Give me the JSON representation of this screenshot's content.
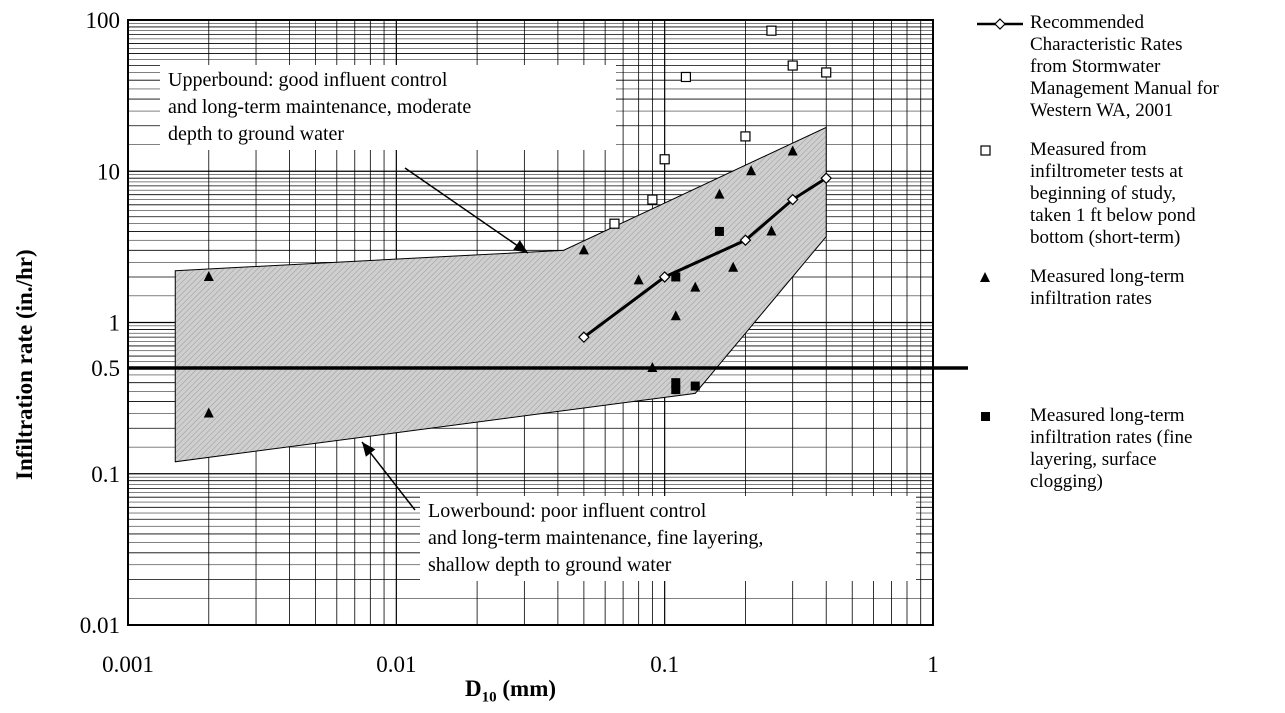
{
  "chart_data": {
    "type": "scatter",
    "xlabel": "D10 (mm)",
    "xlabel_main": "D",
    "xlabel_sub": "10",
    "xlabel_unit": " (mm)",
    "ylabel": "Infiltration rate (in./hr)",
    "xscale": "log",
    "yscale": "log",
    "xlim": [
      0.001,
      1
    ],
    "ylim": [
      0.01,
      100
    ],
    "x_ticks": [
      "0.001",
      "0.01",
      "0.1",
      "1"
    ],
    "y_ticks": [
      "0.01",
      "0.1",
      "0.5",
      "1",
      "10",
      "100"
    ],
    "grid": true,
    "reference_line_y": 0.5,
    "legend_position": "right",
    "band_polygon": [
      [
        0.0015,
        2.2
      ],
      [
        0.042,
        3.0
      ],
      [
        0.4,
        19.5
      ],
      [
        0.4,
        3.7
      ],
      [
        0.13,
        0.34
      ],
      [
        0.0015,
        0.12
      ]
    ],
    "series": [
      {
        "name": "Recommended Characteristic Rates from Stormwater Management Manual for Western WA, 2001",
        "marker": "diamond-line",
        "x": [
          0.05,
          0.1,
          0.2,
          0.3,
          0.4
        ],
        "y": [
          0.8,
          2.0,
          3.5,
          6.5,
          9.0
        ]
      },
      {
        "name": "Measured from infiltrometer tests at beginning of study, taken 1 ft below pond bottom (short-term)",
        "marker": "open-square",
        "x": [
          0.065,
          0.09,
          0.1,
          0.12,
          0.2,
          0.25,
          0.3,
          0.4
        ],
        "y": [
          4.5,
          6.5,
          12,
          42,
          17,
          85,
          50,
          45
        ]
      },
      {
        "name": "Measured long-term infiltration rates",
        "marker": "filled-triangle",
        "x": [
          0.002,
          0.002,
          0.05,
          0.08,
          0.09,
          0.11,
          0.13,
          0.16,
          0.18,
          0.21,
          0.25,
          0.3
        ],
        "y": [
          2.0,
          0.25,
          3.0,
          1.9,
          0.5,
          1.1,
          1.7,
          7.0,
          2.3,
          10,
          4.0,
          13.5
        ]
      },
      {
        "name": "Measured long-term infiltration rates (fine layering, surface clogging)",
        "marker": "filled-square",
        "x": [
          0.11,
          0.11,
          0.11,
          0.13,
          0.16
        ],
        "y": [
          2.0,
          0.4,
          0.36,
          0.38,
          4.0
        ]
      }
    ]
  },
  "legend": {
    "recommended": "Recommended\nCharacteristic Rates\nfrom Stormwater\nManagement Manual for\nWestern WA, 2001",
    "short_term": "Measured from\ninfiltrometer tests at\nbeginning of study,\ntaken 1 ft below pond\nbottom (short-term)",
    "long_term": "Measured long-term\ninfiltration rates",
    "fine_layering": "Measured long-term\ninfiltration rates (fine\nlayering, surface\nclogging)"
  },
  "annotations": {
    "upper": "Upperbound:  good influent control\nand long-term maintenance, moderate\ndepth to ground water",
    "lower": "Lowerbound:  poor influent control\nand long-term maintenance, fine layering,\nshallow depth to ground water"
  },
  "colors": {
    "band_fill": "#c8c8c8",
    "marker": "#000000",
    "grid": "#000000"
  }
}
